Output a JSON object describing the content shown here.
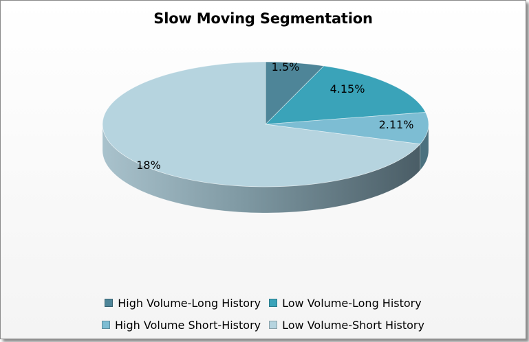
{
  "chart_data": {
    "type": "pie",
    "title": "Slow Moving Segmentation",
    "categories": [
      "High Volume-Long History",
      "Low Volume-Long History",
      "High Volume Short-History",
      "Low Volume-Short History"
    ],
    "values": [
      1.5,
      4.15,
      2.11,
      18
    ],
    "data_labels": [
      "1.5%",
      "4.15%",
      "2.11%",
      "18%"
    ],
    "colors": [
      "#4e8598",
      "#3aa3b9",
      "#7dbdd3",
      "#b6d4df"
    ],
    "style": "3d",
    "legend_position": "bottom"
  }
}
